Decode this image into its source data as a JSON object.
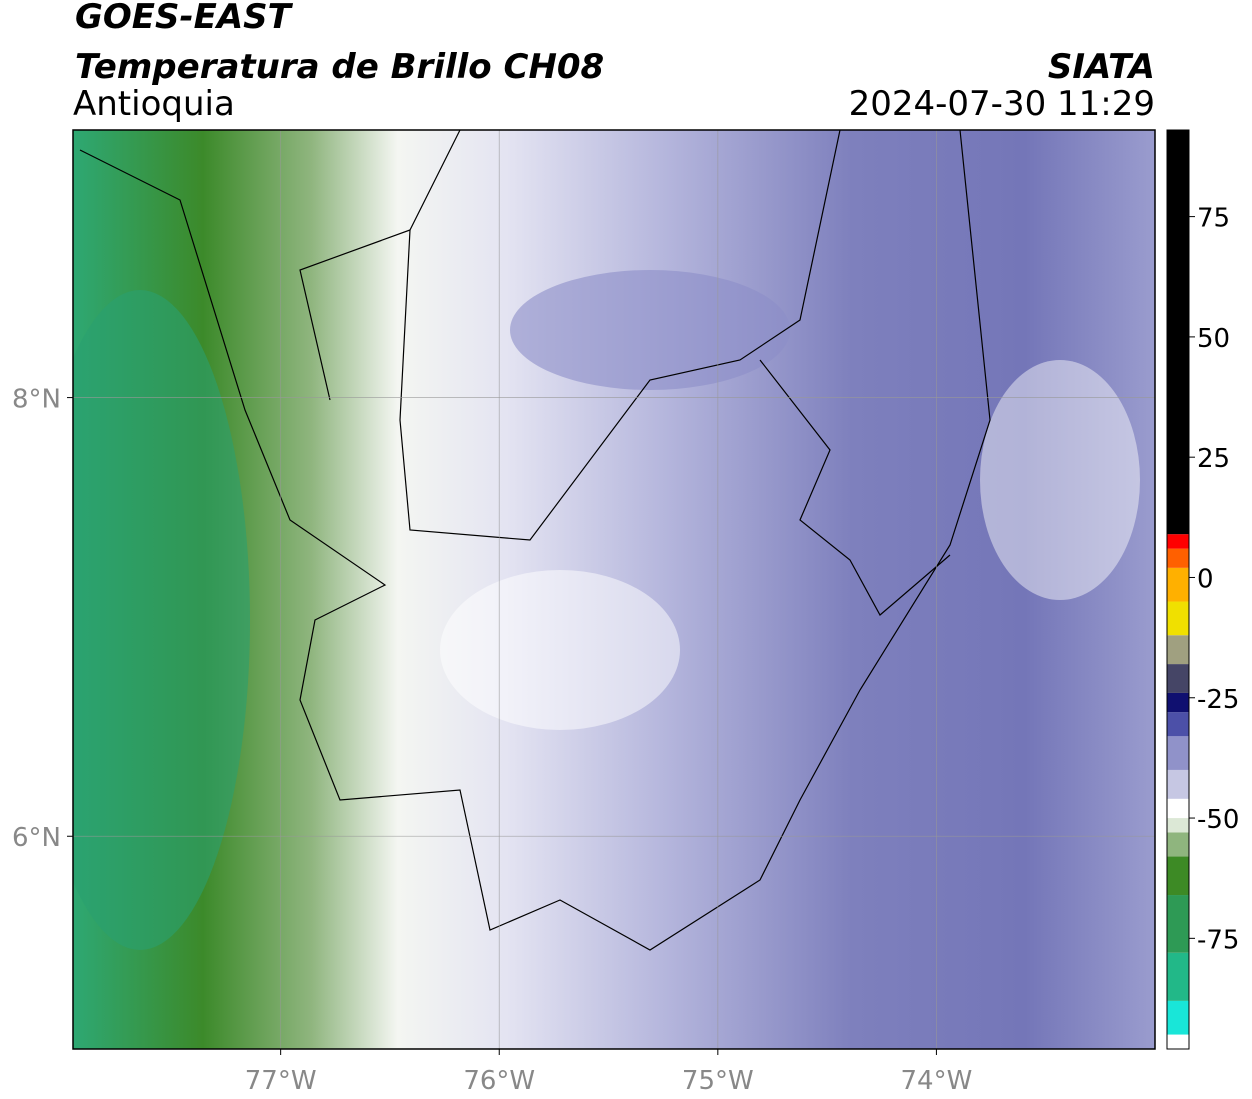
{
  "header": {
    "line1": "GOES-EAST",
    "line2": "Temperatura de Brillo CH08",
    "region": "Antioquia",
    "organization": "SIATA",
    "datetime": "2024-07-30 11:29"
  },
  "map": {
    "xlim": [
      -77.95,
      -73.0
    ],
    "ylim": [
      5.03,
      9.22
    ],
    "xticks": [
      {
        "value": -77,
        "label": "77°W"
      },
      {
        "value": -76,
        "label": "76°W"
      },
      {
        "value": -75,
        "label": "75°W"
      },
      {
        "value": -74,
        "label": "74°W"
      }
    ],
    "yticks": [
      {
        "value": 8,
        "label": "8°N"
      },
      {
        "value": 6,
        "label": "6°N"
      }
    ],
    "grid": true
  },
  "colorbar": {
    "lim": [
      -98,
      93
    ],
    "ticks": [
      75,
      50,
      25,
      0,
      -25,
      -50,
      -75
    ],
    "stops": [
      {
        "value": -98,
        "color": "#ffffff"
      },
      {
        "value": -95,
        "color": "#19e6d8"
      },
      {
        "value": -88,
        "color": "#22b888"
      },
      {
        "value": -78,
        "color": "#2e9a55"
      },
      {
        "value": -66,
        "color": "#3d8a25"
      },
      {
        "value": -58,
        "color": "#8fb57e"
      },
      {
        "value": -53,
        "color": "#dce8d6"
      },
      {
        "value": -50,
        "color": "#ffffff"
      },
      {
        "value": -46,
        "color": "#c6c7e3"
      },
      {
        "value": -40,
        "color": "#9092c9"
      },
      {
        "value": -33,
        "color": "#4c50a8"
      },
      {
        "value": -28,
        "color": "#101070"
      },
      {
        "value": -24,
        "color": "#454566"
      },
      {
        "value": -18,
        "color": "#a0a080"
      },
      {
        "value": -12,
        "color": "#f0e000"
      },
      {
        "value": -5,
        "color": "#ffb000"
      },
      {
        "value": 2,
        "color": "#ff6000"
      },
      {
        "value": 6,
        "color": "#ff0000"
      },
      {
        "value": 9,
        "color": "#000000"
      }
    ]
  }
}
